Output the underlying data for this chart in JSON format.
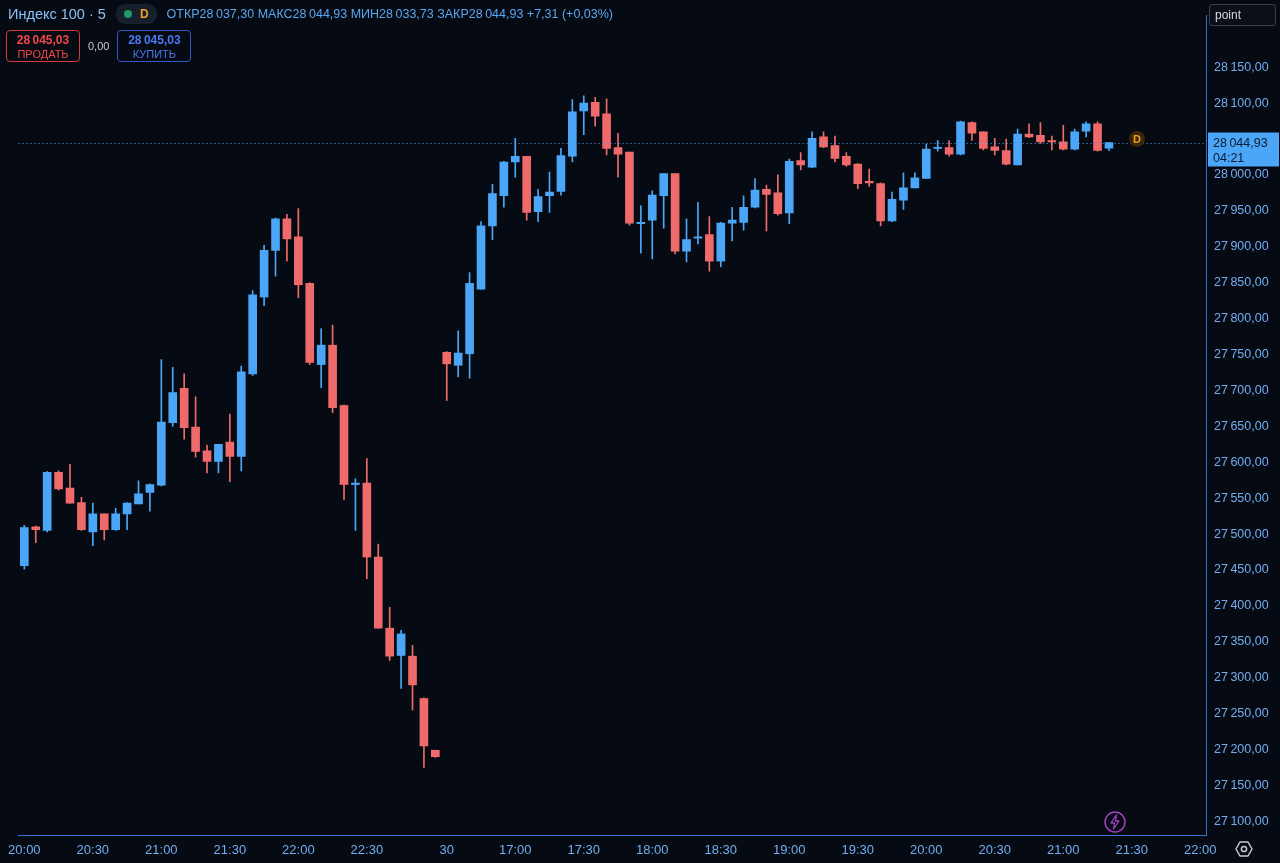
{
  "chart_data": {
    "type": "candlestick",
    "title": "Индекс 100 · 5",
    "subtitle": "ОТКР28 037,30 МАКС28 044,93 МИН28 033,73 ЗАКР28 044,93 +7,31 (+0,03%)",
    "categories": [
      "20:00",
      null,
      null,
      null,
      null,
      null,
      "20:30",
      null,
      null,
      null,
      null,
      null,
      "21:00",
      null,
      null,
      null,
      null,
      null,
      "21:30",
      null,
      null,
      null,
      null,
      null,
      "22:00",
      null,
      null,
      null,
      null,
      null,
      "22:30",
      null,
      null,
      null,
      null,
      null,
      null,
      "30",
      null,
      null,
      null,
      null,
      null,
      "17:00",
      null,
      null,
      null,
      null,
      null,
      "17:30",
      null,
      null,
      null,
      null,
      null,
      "18:00",
      null,
      null,
      null,
      null,
      null,
      "18:30",
      null,
      null,
      null,
      null,
      null,
      "19:00",
      null,
      null,
      null,
      null,
      null,
      "19:30",
      null,
      null,
      null,
      null,
      null,
      "20:00",
      null,
      null,
      null,
      null,
      null,
      "20:30",
      null,
      null,
      null,
      null,
      null,
      "21:00",
      null,
      null,
      null,
      null,
      null,
      "21:30",
      null,
      null,
      null,
      null,
      null,
      "22:00"
    ],
    "ohlc": [
      [
        27456,
        27512,
        27451,
        27509
      ],
      [
        27510,
        27511,
        27488,
        27506
      ],
      [
        27505,
        27587,
        27503,
        27586
      ],
      [
        27586,
        27588,
        27561,
        27563
      ],
      [
        27564,
        27597,
        27543,
        27543
      ],
      [
        27544,
        27551,
        27505,
        27506
      ],
      [
        27503,
        27543,
        27484,
        27528
      ],
      [
        27528,
        27528,
        27492,
        27506
      ],
      [
        27506,
        27536,
        27505,
        27528
      ],
      [
        27528,
        27544,
        27506,
        27543
      ],
      [
        27542,
        27574,
        27542,
        27556
      ],
      [
        27558,
        27570,
        27532,
        27569
      ],
      [
        27568,
        27743,
        27567,
        27656
      ],
      [
        27655,
        27732,
        27650,
        27697
      ],
      [
        27703,
        27723,
        27632,
        27648
      ],
      [
        27649,
        27691,
        27607,
        27615
      ],
      [
        27616,
        27624,
        27585,
        27601
      ],
      [
        27601,
        27625,
        27585,
        27625
      ],
      [
        27628,
        27667,
        27573,
        27608
      ],
      [
        27608,
        27734,
        27588,
        27726
      ],
      [
        27723,
        27839,
        27721,
        27833
      ],
      [
        27830,
        27902,
        27818,
        27895
      ],
      [
        27895,
        27940,
        27859,
        27939
      ],
      [
        27939,
        27945,
        27880,
        27911
      ],
      [
        27914,
        27953,
        27829,
        27847
      ],
      [
        27849,
        27850,
        27736,
        27739
      ],
      [
        27736,
        27786,
        27704,
        27763
      ],
      [
        27763,
        27791,
        27669,
        27676
      ],
      [
        27679,
        27680,
        27548,
        27569
      ],
      [
        27569,
        27577,
        27505,
        27571
      ],
      [
        27571,
        27605,
        27438,
        27468
      ],
      [
        27468,
        27486,
        27369,
        27369
      ],
      [
        27369,
        27398,
        27324,
        27330
      ],
      [
        27331,
        27366,
        27285,
        27361
      ],
      [
        27330,
        27345,
        27255,
        27290
      ],
      [
        27271,
        27272,
        27175,
        27205
      ],
      [
        27199,
        27199,
        27189,
        27190
      ],
      [
        27753,
        27754,
        27686,
        27737
      ],
      [
        27735,
        27783,
        27719,
        27752
      ],
      [
        27751,
        27864,
        27717,
        27849
      ],
      [
        27841,
        27935,
        27841,
        27929
      ],
      [
        27929,
        27987,
        27910,
        27974
      ],
      [
        27971,
        28019,
        27955,
        28018
      ],
      [
        28018,
        28051,
        27997,
        28026
      ],
      [
        28026,
        28026,
        27937,
        27948
      ],
      [
        27949,
        27980,
        27935,
        27970
      ],
      [
        27971,
        28004,
        27948,
        27976
      ],
      [
        27977,
        28037,
        27972,
        28027
      ],
      [
        28026,
        28105,
        28018,
        28088
      ],
      [
        28089,
        28110,
        28056,
        28100
      ],
      [
        28101,
        28108,
        28068,
        28082
      ],
      [
        28085,
        28106,
        28028,
        28037
      ],
      [
        28038,
        28058,
        27997,
        28029
      ],
      [
        28032,
        28032,
        27930,
        27933
      ],
      [
        27932,
        27957,
        27891,
        27934
      ],
      [
        27937,
        27978,
        27883,
        27972
      ],
      [
        27971,
        28002,
        27926,
        28002
      ],
      [
        28002,
        28002,
        27890,
        27894
      ],
      [
        27894,
        27939,
        27879,
        27910
      ],
      [
        27912,
        27962,
        27904,
        27914
      ],
      [
        27917,
        27942,
        27866,
        27880
      ],
      [
        27880,
        27934,
        27872,
        27933
      ],
      [
        27933,
        27955,
        27908,
        27937
      ],
      [
        27934,
        27971,
        27923,
        27955
      ],
      [
        27955,
        27995,
        27954,
        27979
      ],
      [
        27980,
        27986,
        27922,
        27973
      ],
      [
        27975,
        28000,
        27944,
        27946
      ],
      [
        27947,
        28022,
        27932,
        28019
      ],
      [
        28020,
        28031,
        28007,
        28014
      ],
      [
        28011,
        28060,
        28010,
        28051
      ],
      [
        28053,
        28060,
        28038,
        28039
      ],
      [
        28041,
        28054,
        28018,
        28023
      ],
      [
        28026,
        28031,
        28012,
        28014
      ],
      [
        28015,
        28016,
        27981,
        27988
      ],
      [
        27991,
        28008,
        27984,
        27989
      ],
      [
        27988,
        27989,
        27929,
        27936
      ],
      [
        27936,
        27976,
        27935,
        27966
      ],
      [
        27965,
        28003,
        27952,
        27982
      ],
      [
        27982,
        28003,
        27982,
        27996
      ],
      [
        27995,
        28043,
        27995,
        28036
      ],
      [
        28037,
        28048,
        28033,
        28038
      ],
      [
        28038,
        28048,
        28026,
        28029
      ],
      [
        28029,
        28075,
        28028,
        28074
      ],
      [
        28073,
        28074,
        28048,
        28058
      ],
      [
        28060,
        28060,
        28035,
        28037
      ],
      [
        28039,
        28051,
        28028,
        28034
      ],
      [
        28034,
        28050,
        28014,
        28015
      ],
      [
        28014,
        28064,
        28014,
        28057
      ],
      [
        28057,
        28071,
        28052,
        28053
      ],
      [
        28055,
        28073,
        28044,
        28046
      ],
      [
        28048,
        28054,
        28035,
        28046
      ],
      [
        28046,
        28069,
        28035,
        28036
      ],
      [
        28036,
        28064,
        28035,
        28060
      ],
      [
        28061,
        28074,
        28053,
        28071
      ],
      [
        28071,
        28074,
        28033,
        28034
      ],
      [
        28037.3,
        28044.93,
        28033.73,
        28044.93
      ],
      null,
      null,
      null,
      null,
      null,
      null,
      null,
      null
    ],
    "colors": [
      "#4ba6f7",
      "#ef6a6a",
      "#4ba6f7",
      "#ef6a6a",
      "#ef6a6a",
      "#ef6a6a",
      "#4ba6f7",
      "#ef6a6a",
      "#4ba6f7",
      "#4ba6f7",
      "#4ba6f7",
      "#4ba6f7",
      "#4ba6f7",
      "#4ba6f7",
      "#ef6a6a",
      "#ef6a6a",
      "#ef6a6a",
      "#4ba6f7",
      "#ef6a6a",
      "#4ba6f7",
      "#4ba6f7",
      "#4ba6f7",
      "#4ba6f7",
      "#ef6a6a",
      "#ef6a6a",
      "#ef6a6a",
      "#4ba6f7",
      "#ef6a6a",
      "#ef6a6a",
      "#4ba6f7",
      "#ef6a6a",
      "#ef6a6a",
      "#ef6a6a",
      "#4ba6f7",
      "#ef6a6a",
      "#ef6a6a",
      "#ef6a6a",
      "#ef6a6a",
      "#4ba6f7",
      "#4ba6f7",
      "#4ba6f7",
      "#4ba6f7",
      "#4ba6f7",
      "#4ba6f7",
      "#ef6a6a",
      "#4ba6f7",
      "#4ba6f7",
      "#4ba6f7",
      "#4ba6f7",
      "#4ba6f7",
      "#ef6a6a",
      "#ef6a6a",
      "#ef6a6a",
      "#ef6a6a",
      "#4ba6f7",
      "#4ba6f7",
      "#4ba6f7",
      "#ef6a6a",
      "#4ba6f7",
      "#4ba6f7",
      "#ef6a6a",
      "#4ba6f7",
      "#4ba6f7",
      "#4ba6f7",
      "#4ba6f7",
      "#ef6a6a",
      "#ef6a6a",
      "#4ba6f7",
      "#ef6a6a",
      "#4ba6f7",
      "#ef6a6a",
      "#ef6a6a",
      "#ef6a6a",
      "#ef6a6a",
      "#ef6a6a",
      "#ef6a6a",
      "#4ba6f7",
      "#4ba6f7",
      "#4ba6f7",
      "#4ba6f7",
      "#4ba6f7",
      "#ef6a6a",
      "#4ba6f7",
      "#ef6a6a",
      "#ef6a6a",
      "#ef6a6a",
      "#ef6a6a",
      "#4ba6f7",
      "#ef6a6a",
      "#ef6a6a",
      "#ef6a6a",
      "#ef6a6a",
      "#4ba6f7",
      "#4ba6f7",
      "#ef6a6a",
      "#4ba6f7",
      null,
      null,
      null,
      null,
      null,
      null,
      null,
      null
    ],
    "ylim": [
      27081,
      28222
    ],
    "yticks": [
      {
        "value": 27100,
        "label": "27 100,00"
      },
      {
        "value": 27150,
        "label": "27 150,00"
      },
      {
        "value": 27200,
        "label": "27 200,00"
      },
      {
        "value": 27250,
        "label": "27 250,00"
      },
      {
        "value": 27300,
        "label": "27 300,00"
      },
      {
        "value": 27350,
        "label": "27 350,00"
      },
      {
        "value": 27400,
        "label": "27 400,00"
      },
      {
        "value": 27450,
        "label": "27 450,00"
      },
      {
        "value": 27500,
        "label": "27 500,00"
      },
      {
        "value": 27550,
        "label": "27 550,00"
      },
      {
        "value": 27600,
        "label": "27 600,00"
      },
      {
        "value": 27650,
        "label": "27 650,00"
      },
      {
        "value": 27700,
        "label": "27 700,00"
      },
      {
        "value": 27750,
        "label": "27 750,00"
      },
      {
        "value": 27800,
        "label": "27 800,00"
      },
      {
        "value": 27850,
        "label": "27 850,00"
      },
      {
        "value": 27900,
        "label": "27 900,00"
      },
      {
        "value": 27950,
        "label": "27 950,00"
      },
      {
        "value": 28000,
        "label": "28 000,00"
      },
      {
        "value": 28100,
        "label": "28 100,00"
      },
      {
        "value": 28150,
        "label": "28 150,00"
      }
    ],
    "ref_lines": [
      {
        "axis": "y",
        "value": 28044.93,
        "label": "28 044,93",
        "color": "#4ba6f7",
        "line_style": "dotted"
      }
    ],
    "annotations": [
      "28 045,03\nПРОДАТЬ",
      "0,00",
      "28 045,03\nКУПИТЬ",
      "D",
      "point",
      "04:21",
      "D"
    ]
  }
}
